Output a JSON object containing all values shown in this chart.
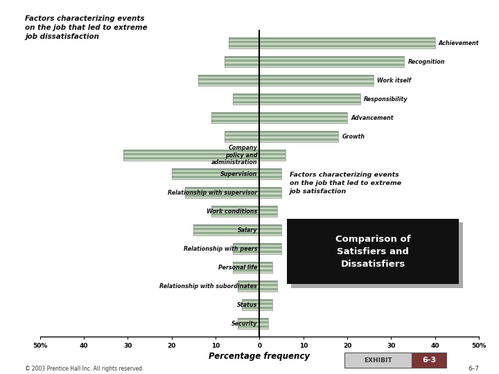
{
  "factors": [
    "Achievement",
    "Recognition",
    "Work itself",
    "Responsibility",
    "Advancement",
    "Growth",
    "Company\npolicy and\nadministration",
    "Supervision",
    "Relationship with supervisor",
    "Work conditions",
    "Salary",
    "Relationship with peers",
    "Personal life",
    "Relationship with subordinates",
    "Status",
    "Security"
  ],
  "satisfiers": [
    40,
    33,
    26,
    23,
    20,
    18,
    6,
    5,
    5,
    4,
    5,
    5,
    3,
    4,
    3,
    2
  ],
  "dissatisfiers": [
    7,
    8,
    14,
    6,
    11,
    8,
    31,
    20,
    17,
    11,
    15,
    6,
    6,
    5,
    4,
    5
  ],
  "bar_color_light": "#c8d8c0",
  "bar_color_dark": "#90aa90",
  "bar_edge_color": "#888888",
  "background_color": "#ffffff",
  "title_left": "Factors characterizing events\non the job that led to extreme\njob dissatisfaction",
  "title_right": "Factors characterizing events\non the job that led to extreme\njob satisfaction",
  "xlabel": "Percentage frequency",
  "xlim": 50,
  "zero_line_color": "#000000",
  "box_title": "Comparison of\nSatisfiers and\nDissatisfiers",
  "box_bg": "#111111",
  "box_shadow": "#999999",
  "box_text_color": "#ffffff",
  "exhibit_label": "EXHIBIT",
  "exhibit_number": "6-3",
  "exhibit_bg": "#cccccc",
  "exhibit_num_bg": "#7a3535",
  "footer_source": "© 2003 Prentice Hall Inc. All rights reserved.",
  "footer_right": "6–7",
  "satisfier_label_indices": [
    0,
    1,
    2,
    3,
    4,
    5
  ],
  "hygiene_label_indices": [
    6,
    7,
    8,
    9,
    10,
    11,
    12,
    13,
    14,
    15
  ]
}
